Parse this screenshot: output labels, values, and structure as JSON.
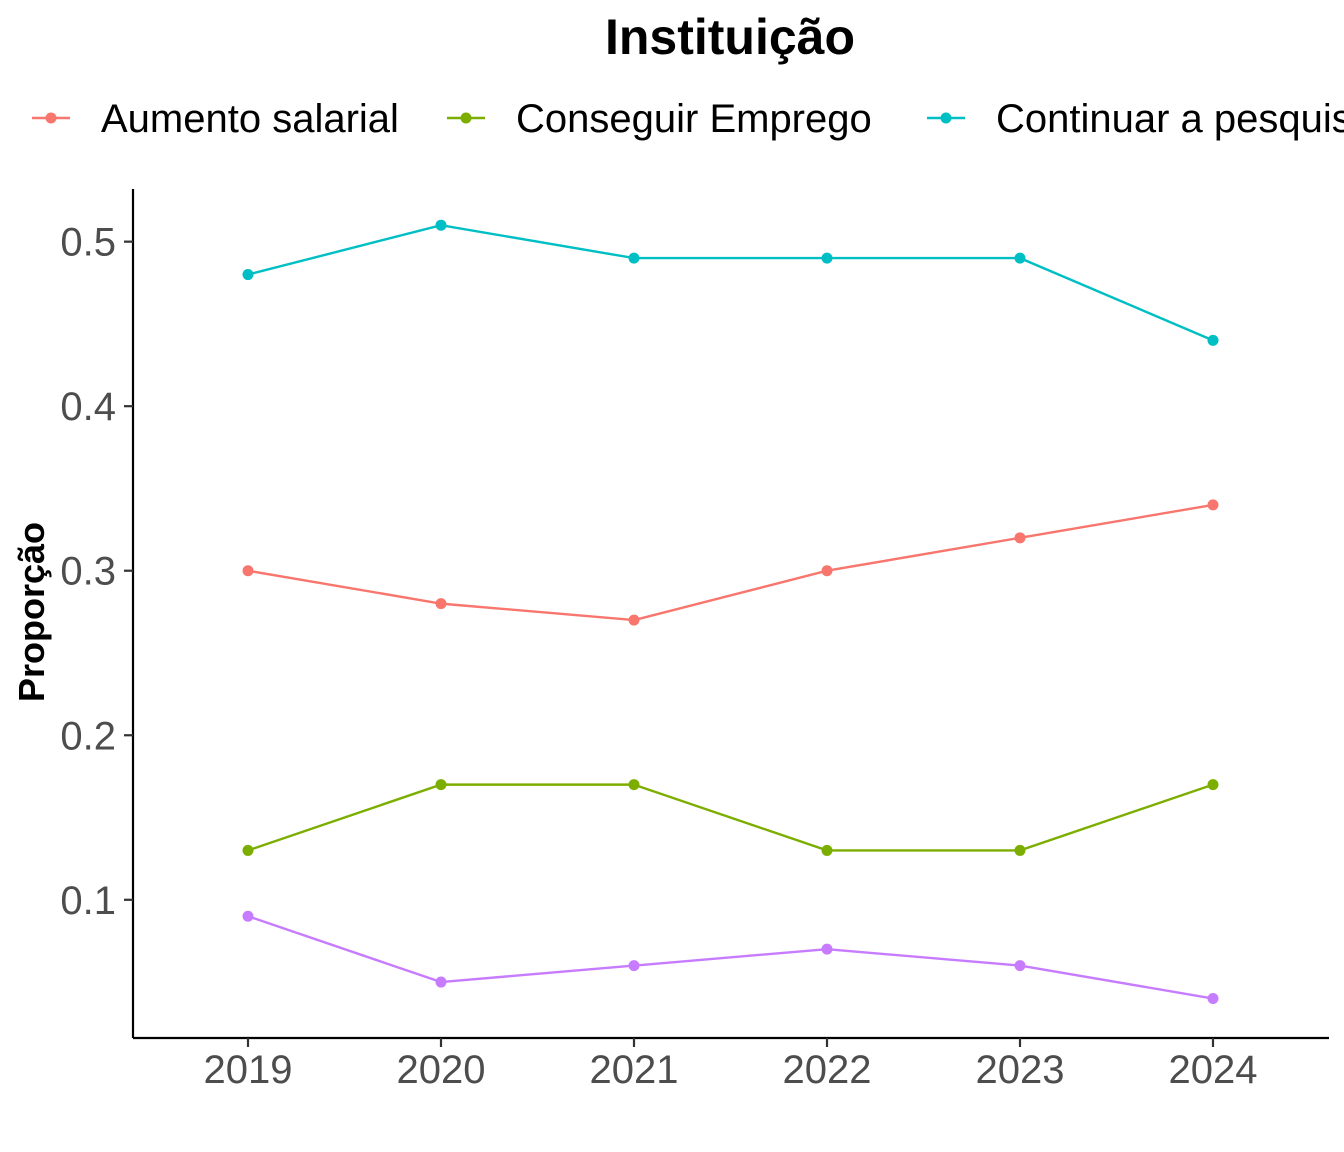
{
  "chart_data": {
    "type": "line",
    "title": "Instituição",
    "xlabel": "",
    "ylabel": "Proporção",
    "x": [
      "2019",
      "2020",
      "2021",
      "2022",
      "2023",
      "2024"
    ],
    "ylim": [
      0.016,
      0.532
    ],
    "yticks": [
      0.1,
      0.2,
      0.3,
      0.4,
      0.5
    ],
    "ytick_labels": [
      "0.1",
      "0.2",
      "0.3",
      "0.4",
      "0.5"
    ],
    "grid": false,
    "legend_position": "top",
    "series": [
      {
        "name": "Aumento salarial",
        "color": "#F8766D",
        "values": [
          0.3,
          0.28,
          0.27,
          0.3,
          0.32,
          0.34
        ]
      },
      {
        "name": "Conseguir Emprego",
        "color": "#7CAE00",
        "values": [
          0.13,
          0.17,
          0.17,
          0.13,
          0.13,
          0.17
        ]
      },
      {
        "name": "Continuar a pesquisa",
        "color": "#00BFC4",
        "values": [
          0.48,
          0.51,
          0.49,
          0.49,
          0.49,
          0.44
        ]
      },
      {
        "color": "#C77CFF",
        "values": [
          0.09,
          0.05,
          0.06,
          0.07,
          0.06,
          0.04
        ]
      }
    ]
  }
}
